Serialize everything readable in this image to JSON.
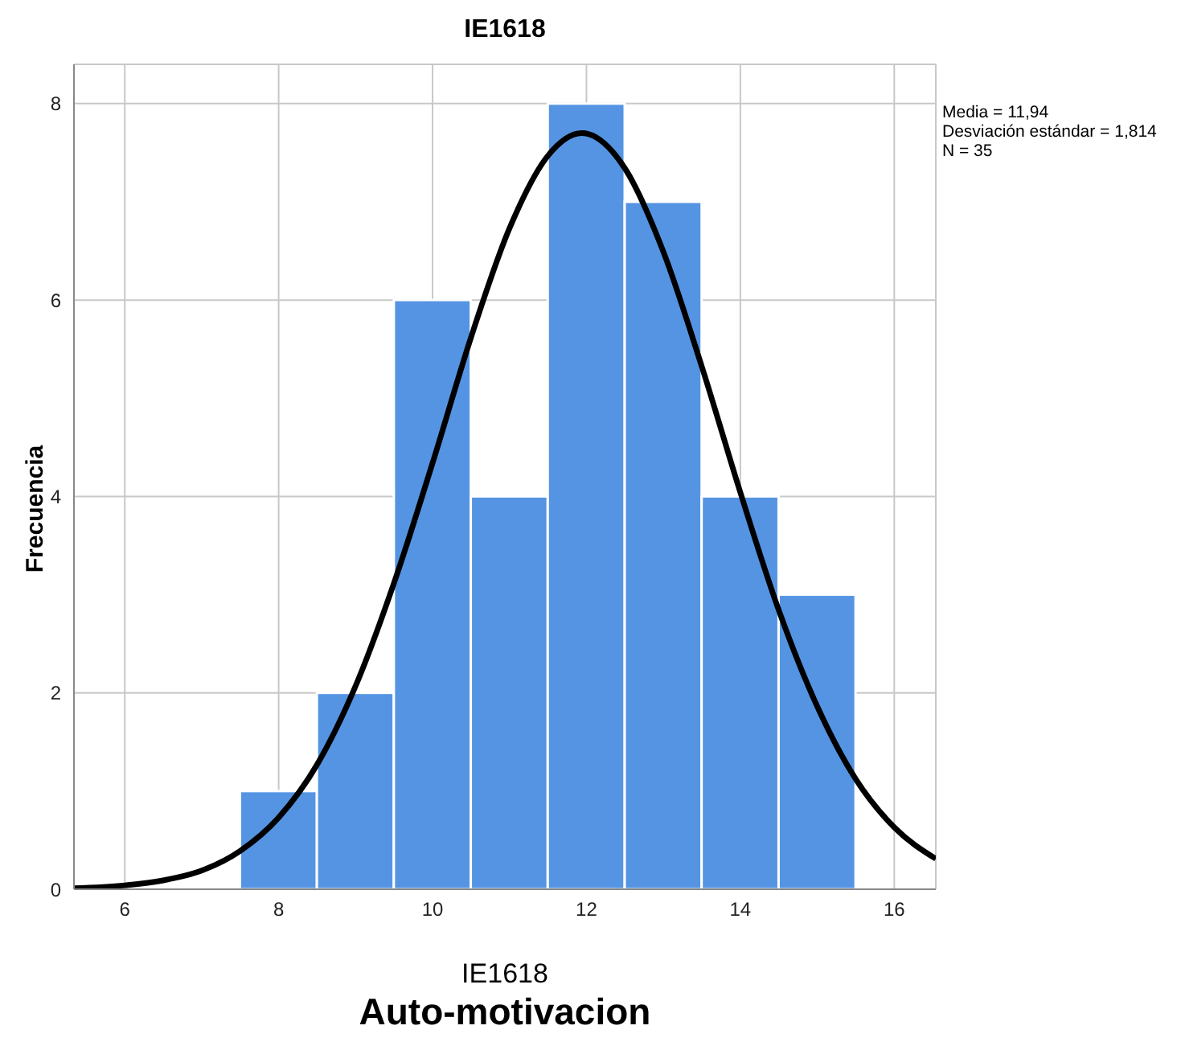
{
  "chart_data": {
    "type": "histogram",
    "title": "IE1618",
    "subtitle": "Auto-motivacion",
    "xlabel": "IE1618",
    "ylabel": "Frecuencia",
    "annotations": [
      "Media = 11,94",
      "Desviación estándar = 1,814",
      "N = 35"
    ],
    "bins": [
      7.5,
      8.5,
      9.5,
      10.5,
      11.5,
      12.5,
      13.5,
      14.5,
      15.5
    ],
    "values": [
      1,
      2,
      6,
      4,
      8,
      7,
      4,
      3
    ],
    "color": "#5594e3",
    "series": [
      {
        "type": "line",
        "color": "#000000",
        "x": [
          5.34,
          6,
          6.5,
          7,
          7.5,
          8,
          8.5,
          9,
          9.5,
          10,
          10.5,
          11,
          11.5,
          11.94,
          12.5,
          13,
          13.5,
          14,
          14.5,
          15,
          15.5,
          16,
          16.54
        ],
        "values": [
          0.01,
          0.04,
          0.09,
          0.19,
          0.39,
          0.73,
          1.27,
          2.07,
          3.12,
          4.34,
          5.62,
          6.73,
          7.47,
          7.7,
          7.34,
          6.49,
          5.32,
          4.04,
          2.84,
          1.86,
          1.12,
          0.63,
          0.31
        ]
      }
    ],
    "xlim": [
      5.34,
      16.54
    ],
    "xticks": [
      6,
      8,
      10,
      12,
      14,
      16
    ],
    "ylim": [
      0,
      8.4
    ],
    "yticks": [
      0,
      2,
      4,
      6,
      8
    ],
    "grid": true,
    "marker": "none",
    "line_style": "solid"
  }
}
